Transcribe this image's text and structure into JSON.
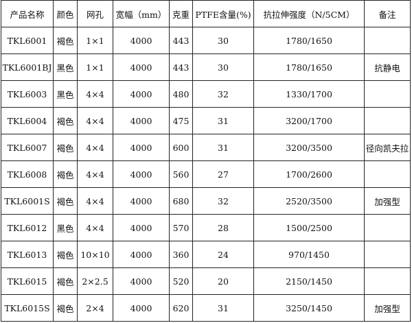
{
  "headers": [
    "产品名称",
    "颜色",
    "网孔",
    "宽幅（mm）",
    "克重",
    "PTFE含量(%)",
    "抗拉伸强度（N/5CM）",
    "备注"
  ],
  "rows": [
    [
      "TKL6001",
      "褐色",
      "1×1",
      "4000",
      "443",
      "30",
      "1780/1650",
      ""
    ],
    [
      "TKL6001BJ",
      "黑色",
      "1×1",
      "4000",
      "443",
      "30",
      "1780/1650",
      "抗静电"
    ],
    [
      "TKL6003",
      "黑色",
      "4×4",
      "4000",
      "480",
      "32",
      "1330/1700",
      ""
    ],
    [
      "TKL6004",
      "褐色",
      "4×4",
      "4000",
      "475",
      "31",
      "3200/1700",
      ""
    ],
    [
      "TKL6007",
      "褐色",
      "4×4",
      "4000",
      "600",
      "31",
      "3200/3500",
      "径向凯夫拉"
    ],
    [
      "TKL6008",
      "褐色",
      "4×4",
      "4000",
      "560",
      "27",
      "1700/2600",
      ""
    ],
    [
      "TKL6001S",
      "褐色",
      "4×4",
      "4000",
      "680",
      "32",
      "2520/3500",
      "加强型"
    ],
    [
      "TKL6012",
      "黑色",
      "4×4",
      "4000",
      "570",
      "28",
      "1500/2500",
      ""
    ],
    [
      "TKL6013",
      "褐色",
      "10×10",
      "4000",
      "360",
      "24",
      "970/1450",
      ""
    ],
    [
      "TKL6015",
      "褐色",
      "2×2.5",
      "4000",
      "520",
      "20",
      "2150/1450",
      ""
    ],
    [
      "TKL6015S",
      "褐色",
      "2×4",
      "4000",
      "620",
      "31",
      "3250/1450",
      "加强型"
    ]
  ]
}
